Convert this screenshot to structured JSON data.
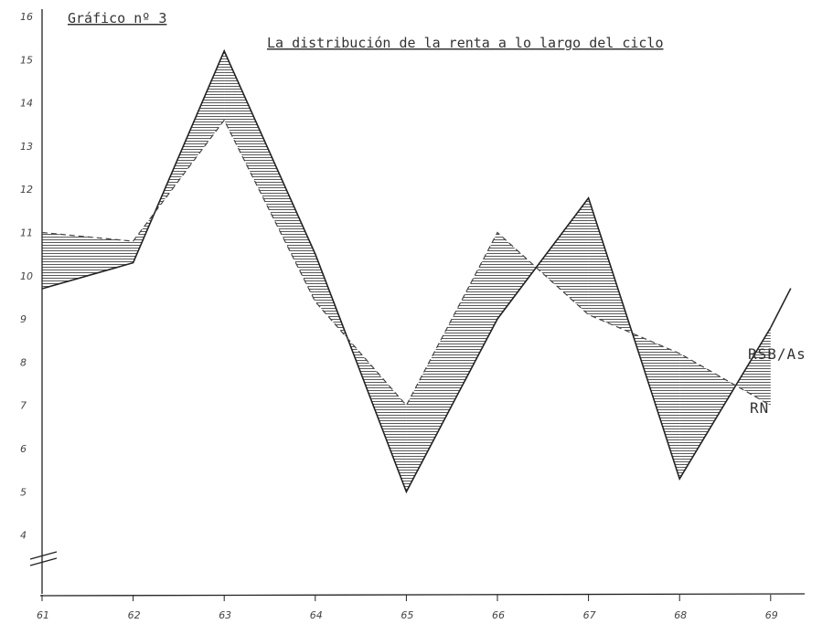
{
  "chart_data": {
    "type": "line",
    "figure_label": "Gráfico nº 3",
    "title": "La distribución de la renta a lo largo del ciclo",
    "x": [
      "61",
      "62",
      "63",
      "64",
      "65",
      "66",
      "67",
      "68",
      "69"
    ],
    "x_numeric": [
      61,
      62,
      63,
      64,
      65,
      66,
      67,
      68,
      69
    ],
    "y_ticks": [
      "16",
      "15",
      "14",
      "13",
      "12",
      "11",
      "10",
      "9",
      "8",
      "7",
      "6",
      "5",
      "4"
    ],
    "ylim": [
      4,
      16
    ],
    "series": [
      {
        "name": "RSB/As",
        "style": "solid",
        "color": "#222222",
        "x": [
          61,
          62,
          63,
          64,
          65,
          66,
          67,
          68,
          69
        ],
        "values": [
          9.7,
          10.3,
          15.2,
          10.5,
          5.0,
          9.0,
          11.8,
          5.3,
          8.8
        ]
      },
      {
        "name": "RN",
        "style": "dashed",
        "color": "#444444",
        "x": [
          61,
          62,
          63,
          64,
          65,
          66,
          67,
          68,
          69
        ],
        "values": [
          11.0,
          10.8,
          13.6,
          9.4,
          7.0,
          11.0,
          9.1,
          8.2,
          7.0
        ]
      }
    ],
    "hatched_areas": true,
    "axis_break": true,
    "grid": false
  }
}
